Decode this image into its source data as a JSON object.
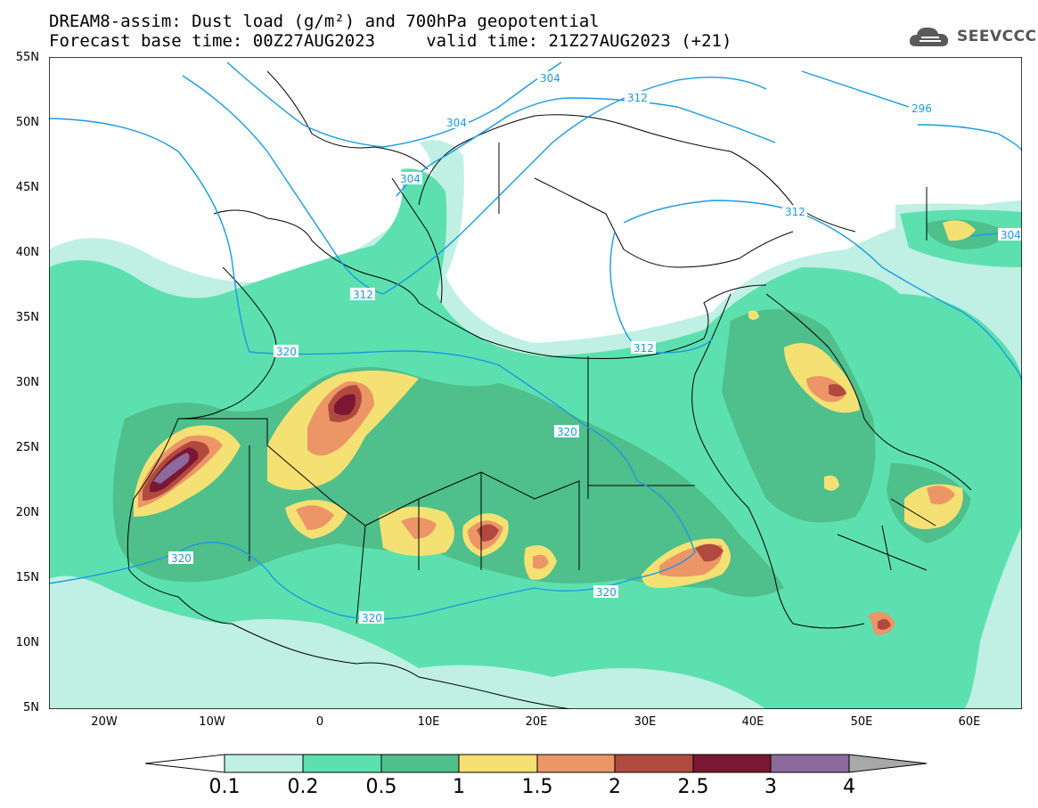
{
  "title": {
    "line1": "DREAM8-assim: Dust load (g/m²) and 700hPa geopotential",
    "line2": "Forecast base time: 00Z27AUG2023     valid time: 21Z27AUG2023 (+21)"
  },
  "logo": {
    "text": "SEEVCCC",
    "icon": "cloud-icon"
  },
  "map": {
    "lat_labels": [
      "55N",
      "50N",
      "45N",
      "40N",
      "35N",
      "30N",
      "25N",
      "20N",
      "15N",
      "10N",
      "5N"
    ],
    "lon_labels": [
      "20W",
      "10W",
      "0",
      "10E",
      "20E",
      "30E",
      "40E",
      "50E",
      "60E"
    ],
    "contour_labels": [
      "304",
      "304",
      "312",
      "304",
      "296",
      "312",
      "304",
      "312",
      "312",
      "320",
      "320",
      "320",
      "320",
      "320"
    ]
  },
  "colorbar": {
    "ticks": [
      "0.1",
      "0.2",
      "0.5",
      "1",
      "1.5",
      "2",
      "2.5",
      "3",
      "4"
    ],
    "colors": [
      "#bff0e3",
      "#5de0b0",
      "#4fbf8b",
      "#f5e173",
      "#ec9566",
      "#b14a3e",
      "#7b1733",
      "#8c6a9c"
    ],
    "under_color": "#ffffff",
    "over_color": "#a8a8a8"
  },
  "colors": {
    "c01": "#bff0e3",
    "c02": "#5de0b0",
    "c05": "#4fbf8b",
    "c1": "#f5e173",
    "c15": "#ec9566",
    "c2": "#b14a3e",
    "c25": "#7b1733",
    "c3": "#8c6a9c",
    "contour": "#1a9be0",
    "border": "#000000"
  }
}
